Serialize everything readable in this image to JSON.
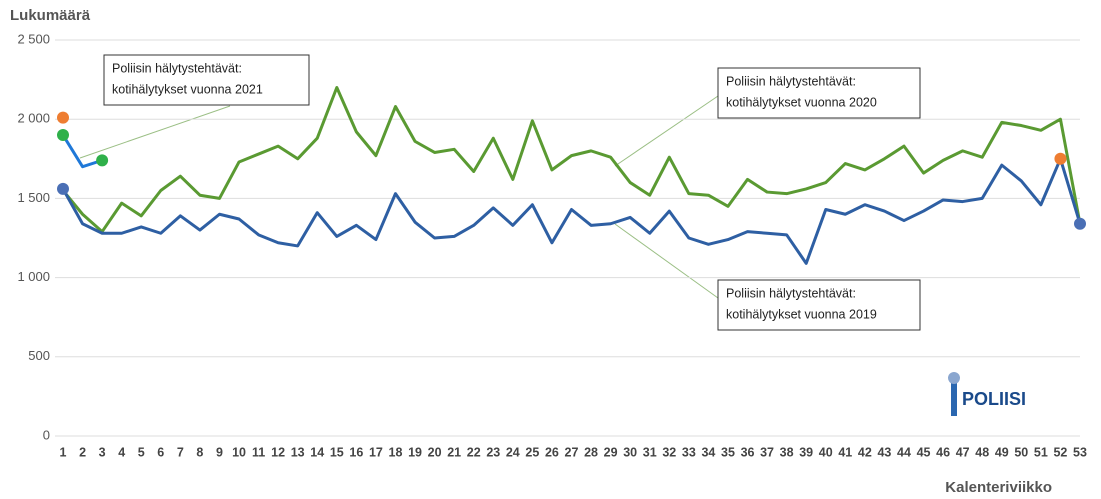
{
  "chart_data": {
    "type": "line",
    "y_label": "Lukumäärä",
    "x_label": "Kalenteriviikko",
    "logo": "POLIISI",
    "categories": [
      1,
      2,
      3,
      4,
      5,
      6,
      7,
      8,
      9,
      10,
      11,
      12,
      13,
      14,
      15,
      16,
      17,
      18,
      19,
      20,
      21,
      22,
      23,
      24,
      25,
      26,
      27,
      28,
      29,
      30,
      31,
      32,
      33,
      34,
      35,
      36,
      37,
      38,
      39,
      40,
      41,
      42,
      43,
      44,
      45,
      46,
      47,
      48,
      49,
      50,
      51,
      52,
      53
    ],
    "ylim": [
      0,
      2500
    ],
    "yticks": [
      0,
      500,
      {
        "value": 1000,
        "label": "1 000"
      },
      {
        "value": 1500,
        "label": "1 500"
      },
      {
        "value": 2000,
        "label": "2 000"
      },
      {
        "value": 2500,
        "label": "2 500"
      }
    ],
    "grid": true,
    "series": [
      {
        "color": "#5a9a32",
        "values": [
          1550,
          1400,
          1290,
          1470,
          1390,
          1550,
          1640,
          1520,
          1500,
          1730,
          1780,
          1830,
          1750,
          1880,
          2200,
          1920,
          1770,
          2080,
          1860,
          1790,
          1810,
          1670,
          1880,
          1620,
          1990,
          1680,
          1770,
          1800,
          1760,
          1600,
          1520,
          1760,
          1530,
          1520,
          1450,
          1620,
          1540,
          1530,
          1560,
          1600,
          1720,
          1680,
          1750,
          1830,
          1660,
          1740,
          1800,
          1760,
          1980,
          1960,
          1930,
          2000,
          1340
        ]
      },
      {
        "color": "#2e5fa3",
        "marker_color": "#4a6fb5",
        "values": [
          1560,
          1340,
          1280,
          1280,
          1320,
          1280,
          1390,
          1300,
          1400,
          1370,
          1270,
          1220,
          1200,
          1410,
          1260,
          1330,
          1240,
          1530,
          1350,
          1250,
          1260,
          1330,
          1440,
          1330,
          1460,
          1220,
          1430,
          1330,
          1340,
          1380,
          1280,
          1420,
          1250,
          1210,
          1240,
          1290,
          1280,
          1270,
          1090,
          1430,
          1400,
          1460,
          1420,
          1360,
          1420,
          1490,
          1480,
          1500,
          1710,
          1610,
          1460,
          1750,
          1340
        ]
      },
      {
        "color": "#1f78d8",
        "marker_color": "#2fb04a",
        "values": [
          1900,
          1700,
          1740,
          null,
          null,
          null,
          null,
          null,
          null,
          null,
          null,
          null,
          null,
          null,
          null,
          null,
          null,
          null,
          null,
          null,
          null,
          null,
          null,
          null,
          null,
          null,
          null,
          null,
          null,
          null,
          null,
          null,
          null,
          null,
          null,
          null,
          null,
          null,
          null,
          null,
          null,
          null,
          null,
          null,
          null,
          null,
          null,
          null,
          null,
          null,
          null,
          null,
          null
        ]
      },
      {
        "color": "#ee7d31",
        "points_only": true,
        "values": [
          2010,
          null,
          null,
          null,
          null,
          null,
          null,
          null,
          null,
          null,
          null,
          null,
          null,
          null,
          null,
          null,
          null,
          null,
          null,
          null,
          null,
          null,
          null,
          null,
          null,
          null,
          null,
          null,
          null,
          null,
          null,
          null,
          null,
          null,
          null,
          null,
          null,
          null,
          null,
          null,
          null,
          null,
          null,
          null,
          null,
          null,
          null,
          null,
          null,
          null,
          null,
          1750,
          null
        ]
      }
    ],
    "annotations": [
      {
        "lines": [
          "Poliisin hälytystehtävät:",
          "kotihälytykset vuonna 2021"
        ]
      },
      {
        "lines": [
          "Poliisin hälytystehtävät:",
          "kotihälytykset vuonna 2020"
        ]
      },
      {
        "lines": [
          "Poliisin hälytystehtävät:",
          "kotihälytykset vuonna 2019"
        ]
      }
    ]
  }
}
